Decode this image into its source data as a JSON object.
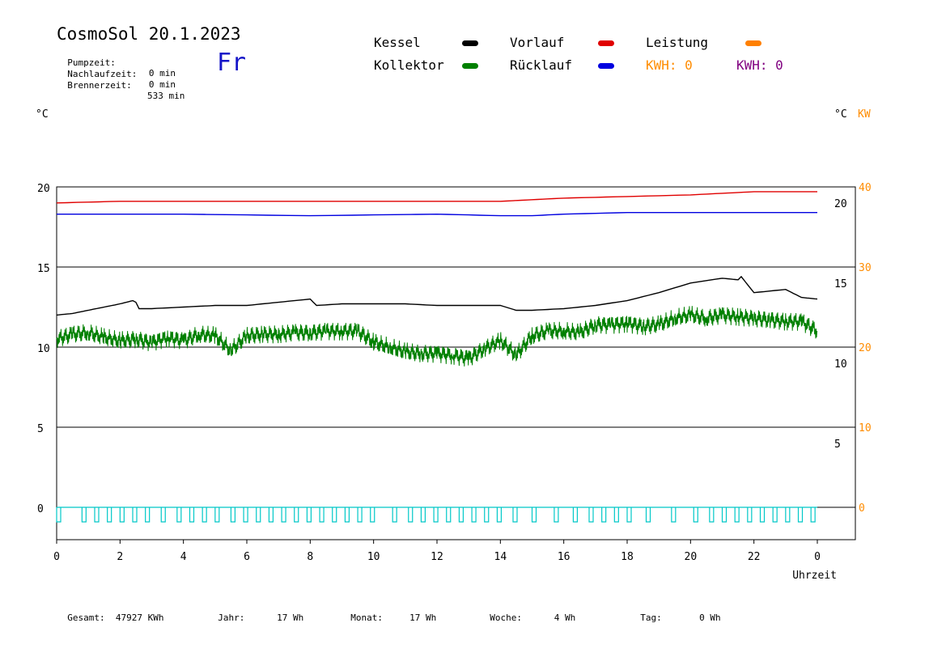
{
  "header": {
    "title": "CosmoSol 20.1.2023",
    "day": "Fr",
    "stats": [
      {
        "label": "Pumpzeit:",
        "value": "0 min"
      },
      {
        "label": "Nachlaufzeit:",
        "value": "0 min"
      },
      {
        "label": "Brennerzeit:",
        "value": "533 min"
      }
    ]
  },
  "legend": {
    "kessel": "Kessel",
    "kollektor": "Kollektor",
    "vorlauf": "Vorlauf",
    "ruecklauf": "Rücklauf",
    "leistung": "Leistung",
    "kwh1": "KWH: 0",
    "kwh2": "KWH: 0"
  },
  "units": {
    "left": "°C",
    "right_c": "°C",
    "right_kw": "KW"
  },
  "xaxis_label": "Uhrzeit",
  "footer": [
    {
      "label": "Gesamt:",
      "value": "47927 KWh"
    },
    {
      "label": "Jahr:",
      "value": "17 Wh"
    },
    {
      "label": "Monat:",
      "value": "17 Wh"
    },
    {
      "label": "Woche:",
      "value": "4 Wh"
    },
    {
      "label": "Tag:",
      "value": "0 Wh"
    }
  ],
  "colors": {
    "kessel": "#000000",
    "kollektor": "#008000",
    "vorlauf": "#e00000",
    "ruecklauf": "#0000e0",
    "leistung": "#ff8000",
    "kwh2": "#800080",
    "pump": "#00c8c8",
    "orange_axis": "#ff8c00"
  },
  "chart_data": {
    "type": "line",
    "x_ticks": [
      "0",
      "2",
      "4",
      "6",
      "8",
      "10",
      "12",
      "14",
      "16",
      "18",
      "20",
      "22",
      "0"
    ],
    "xlim": [
      0,
      24
    ],
    "xlabel": "Uhrzeit",
    "ylim_left": [
      -2,
      22
    ],
    "left_ticks": [
      "20",
      "15",
      "10",
      "5",
      "0"
    ],
    "right_ticks_c": [
      "20",
      "15",
      "10",
      "5"
    ],
    "right_ticks_kw": [
      "40",
      "30",
      "20",
      "10",
      "0"
    ],
    "grid": true,
    "series": [
      {
        "name": "Vorlauf",
        "x": [
          0,
          2,
          4,
          6,
          8,
          10,
          12,
          14,
          15,
          16,
          18,
          20,
          21,
          22,
          23,
          24
        ],
        "values": [
          19.0,
          19.1,
          19.1,
          19.1,
          19.1,
          19.1,
          19.1,
          19.1,
          19.2,
          19.3,
          19.4,
          19.5,
          19.6,
          19.7,
          19.7,
          19.7
        ]
      },
      {
        "name": "Rücklauf",
        "x": [
          0,
          4,
          8,
          12,
          14,
          15,
          16,
          18,
          20,
          22,
          24
        ],
        "values": [
          18.3,
          18.3,
          18.2,
          18.3,
          18.2,
          18.2,
          18.3,
          18.4,
          18.4,
          18.4,
          18.4
        ]
      },
      {
        "name": "Kessel",
        "x": [
          0,
          0.5,
          1,
          1.5,
          2,
          2.4,
          2.5,
          2.6,
          3,
          4,
          5,
          6,
          7,
          8,
          8.2,
          9,
          10,
          11,
          12,
          13,
          14,
          14.5,
          15,
          16,
          17,
          18,
          19,
          20,
          21,
          21.5,
          21.6,
          22,
          23,
          23.5,
          24
        ],
        "values": [
          12.0,
          12.1,
          12.3,
          12.5,
          12.7,
          12.9,
          12.8,
          12.4,
          12.4,
          12.5,
          12.6,
          12.6,
          12.8,
          13.0,
          12.6,
          12.7,
          12.7,
          12.7,
          12.6,
          12.6,
          12.6,
          12.3,
          12.3,
          12.4,
          12.6,
          12.9,
          13.4,
          14.0,
          14.3,
          14.2,
          14.4,
          13.4,
          13.6,
          13.1,
          13.0
        ]
      },
      {
        "name": "Kollektor",
        "x": [
          0,
          0.5,
          1,
          1.5,
          2,
          2.5,
          3,
          3.5,
          4,
          4.5,
          5,
          5.5,
          6,
          6.5,
          7,
          7.5,
          8,
          8.5,
          9,
          9.5,
          10,
          10.5,
          11,
          11.5,
          12,
          12.5,
          13,
          13.5,
          14,
          14.5,
          15,
          15.5,
          16,
          16.5,
          17,
          17.5,
          18,
          18.5,
          19,
          19.5,
          20,
          20.5,
          21,
          21.5,
          22,
          22.5,
          23,
          23.5,
          24
        ],
        "values": [
          10.5,
          10.8,
          10.9,
          10.6,
          10.4,
          10.5,
          10.3,
          10.6,
          10.4,
          10.8,
          10.7,
          9.8,
          10.7,
          10.8,
          10.8,
          10.9,
          10.9,
          11.0,
          11.0,
          11.0,
          10.3,
          10.0,
          9.7,
          9.6,
          9.6,
          9.5,
          9.3,
          9.9,
          10.4,
          9.5,
          10.7,
          11.0,
          11.0,
          10.9,
          11.4,
          11.4,
          11.5,
          11.3,
          11.4,
          11.8,
          12.0,
          11.8,
          12.0,
          11.9,
          11.8,
          11.7,
          11.6,
          11.6,
          11.0
        ]
      },
      {
        "name": "Pumpe",
        "x": [
          0,
          24
        ],
        "values": [
          0,
          0
        ]
      }
    ]
  }
}
